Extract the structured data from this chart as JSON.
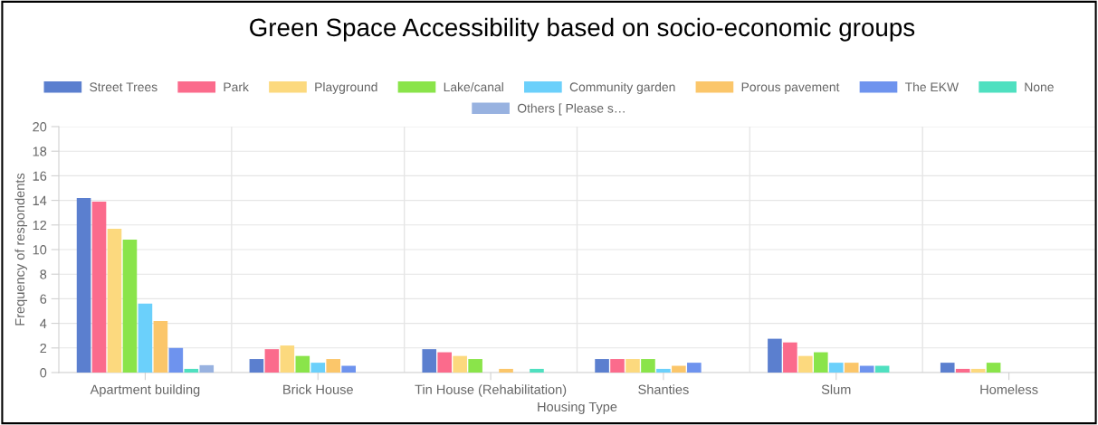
{
  "chart_data": {
    "type": "bar",
    "title": "Green Space Accessibility based on socio-economic groups",
    "xlabel": "Housing Type",
    "ylabel": "Frequency of respondents",
    "categories": [
      "Apartment building",
      "Brick House",
      "Tin House (Rehabilitation)",
      "Shanties",
      "Slum",
      "Homeless"
    ],
    "series": [
      {
        "name": "Street Trees",
        "color": "#5b7fcf",
        "values": [
          14.2,
          1.1,
          1.9,
          1.1,
          2.75,
          0.8
        ]
      },
      {
        "name": "Park",
        "color": "#fb6b8c",
        "values": [
          13.9,
          1.9,
          1.65,
          1.1,
          2.45,
          0.3
        ]
      },
      {
        "name": "Playground",
        "color": "#fcd97e",
        "values": [
          11.7,
          2.2,
          1.35,
          1.1,
          1.35,
          0.3
        ]
      },
      {
        "name": "Lake/canal",
        "color": "#8ae44a",
        "values": [
          10.8,
          1.35,
          1.1,
          1.1,
          1.65,
          0.8
        ]
      },
      {
        "name": "Community garden",
        "color": "#6bd0fb",
        "values": [
          5.6,
          0.8,
          0,
          0.3,
          0.8,
          0
        ]
      },
      {
        "name": "Porous pavement",
        "color": "#fbc66a",
        "values": [
          4.2,
          1.1,
          0.3,
          0.55,
          0.8,
          0
        ]
      },
      {
        "name": "The EKW",
        "color": "#6e93ee",
        "values": [
          2.0,
          0.55,
          0,
          0.8,
          0.55,
          0
        ]
      },
      {
        "name": "None",
        "color": "#4fe0c0",
        "values": [
          0.3,
          0,
          0.3,
          0,
          0.55,
          0
        ]
      },
      {
        "name": "Others [ Please s…",
        "color": "#98b2e0",
        "values": [
          0.6,
          0,
          0,
          0,
          0,
          0
        ]
      }
    ],
    "ylim": [
      0,
      20
    ],
    "yticks": [
      0,
      2,
      4,
      6,
      8,
      10,
      12,
      14,
      16,
      18,
      20
    ],
    "grid": true,
    "legend": "top"
  }
}
